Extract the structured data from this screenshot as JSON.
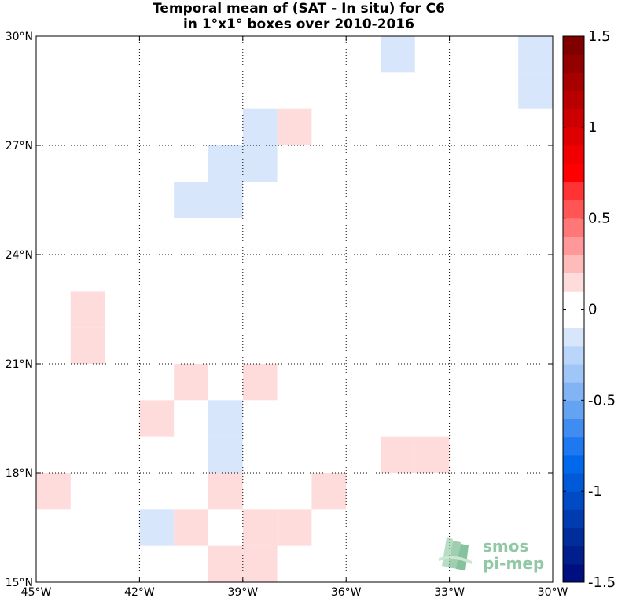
{
  "title": {
    "line1": "Temporal mean of (SAT - In situ) for C6",
    "line2": "in 1°x1° boxes over 2010-2016"
  },
  "chart_data": {
    "type": "heatmap",
    "title": "Temporal mean of (SAT - In situ) for C6 in 1°x1° boxes over 2010-2016",
    "x_axis": {
      "range_lon": [
        -45,
        -30
      ],
      "ticks": [
        -45,
        -42,
        -39,
        -36,
        -33,
        -30
      ],
      "tick_labels": [
        "45°W",
        "42°W",
        "39°W",
        "36°W",
        "33°W",
        "30°W"
      ]
    },
    "y_axis": {
      "range_lat": [
        15,
        30
      ],
      "ticks": [
        15,
        18,
        21,
        24,
        27,
        30
      ],
      "tick_labels": [
        "15°N",
        "18°N",
        "21°N",
        "24°N",
        "27°N",
        "30°N"
      ]
    },
    "grid": "dotted",
    "colorbar": {
      "range": [
        -1.5,
        1.5
      ],
      "ticks": [
        1.5,
        1,
        0.5,
        0,
        -0.5,
        -1,
        -1.5
      ],
      "tick_labels": [
        "1.5",
        "1",
        "0.5",
        "0",
        "-0.5",
        "-1",
        "-1.5"
      ],
      "steps": 30
    },
    "cells": [
      {
        "lon": -35,
        "lat": 29,
        "value": -0.1
      },
      {
        "lon": -31,
        "lat": 29,
        "value": -0.1
      },
      {
        "lon": -31,
        "lat": 28,
        "value": -0.1
      },
      {
        "lon": -39,
        "lat": 27,
        "value": -0.1
      },
      {
        "lon": -38,
        "lat": 27,
        "value": 0.1
      },
      {
        "lon": -40,
        "lat": 26,
        "value": -0.1
      },
      {
        "lon": -39,
        "lat": 26,
        "value": -0.1
      },
      {
        "lon": -41,
        "lat": 25,
        "value": -0.1
      },
      {
        "lon": -40,
        "lat": 25,
        "value": -0.2
      },
      {
        "lon": -44,
        "lat": 22,
        "value": 0.1
      },
      {
        "lon": -44,
        "lat": 21,
        "value": 0.1
      },
      {
        "lon": -41,
        "lat": 20,
        "value": 0.1
      },
      {
        "lon": -39,
        "lat": 20,
        "value": 0.1
      },
      {
        "lon": -42,
        "lat": 19,
        "value": 0.1
      },
      {
        "lon": -40,
        "lat": 19,
        "value": -0.1
      },
      {
        "lon": -40,
        "lat": 18,
        "value": -0.1
      },
      {
        "lon": -35,
        "lat": 18,
        "value": 0.1
      },
      {
        "lon": -34,
        "lat": 18,
        "value": 0.1
      },
      {
        "lon": -45,
        "lat": 17,
        "value": 0.1
      },
      {
        "lon": -40,
        "lat": 17,
        "value": 0.1
      },
      {
        "lon": -37,
        "lat": 17,
        "value": 0.1
      },
      {
        "lon": -42,
        "lat": 16,
        "value": -0.1
      },
      {
        "lon": -41,
        "lat": 16,
        "value": 0.1
      },
      {
        "lon": -39,
        "lat": 16,
        "value": 0.1
      },
      {
        "lon": -38,
        "lat": 16,
        "value": 0.1
      },
      {
        "lon": -40,
        "lat": 15,
        "value": 0.1
      },
      {
        "lon": -39,
        "lat": 15,
        "value": 0.1
      }
    ]
  },
  "logo": {
    "line1": "smos",
    "line2": "pi-mep",
    "color": "#7fbf96"
  }
}
